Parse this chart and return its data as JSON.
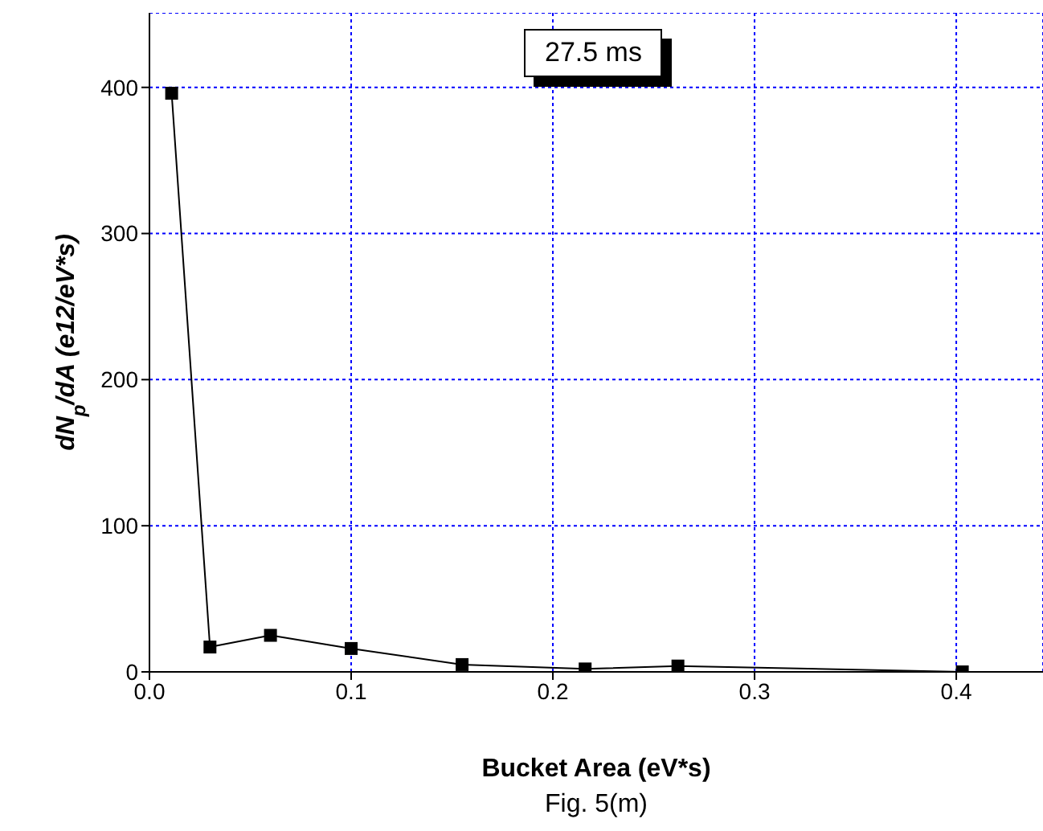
{
  "chart_data": {
    "type": "line",
    "xlabel": "Bucket Area (eV*s)",
    "ylabel": "dN$_{p}$/dA (e12/eV*s)",
    "annotations": [
      "27.5 ms",
      "Fig. 5(m)"
    ],
    "x": [
      0.011,
      0.03,
      0.06,
      0.1,
      0.155,
      0.216,
      0.262,
      0.403
    ],
    "series": [
      {
        "color": "#000000",
        "values": [
          396,
          17,
          25,
          16,
          5,
          2,
          4,
          0
        ]
      }
    ],
    "xlim": [
      0,
      0.443
    ],
    "xticks": [
      {
        "value": 0,
        "label": "0.0"
      },
      0.1,
      0.2,
      0.3,
      0.4
    ],
    "ylim": [
      0,
      451
    ],
    "yticks": [
      0,
      100,
      200,
      300,
      400
    ],
    "grid": true,
    "marker": "square",
    "line_style": "solid"
  }
}
